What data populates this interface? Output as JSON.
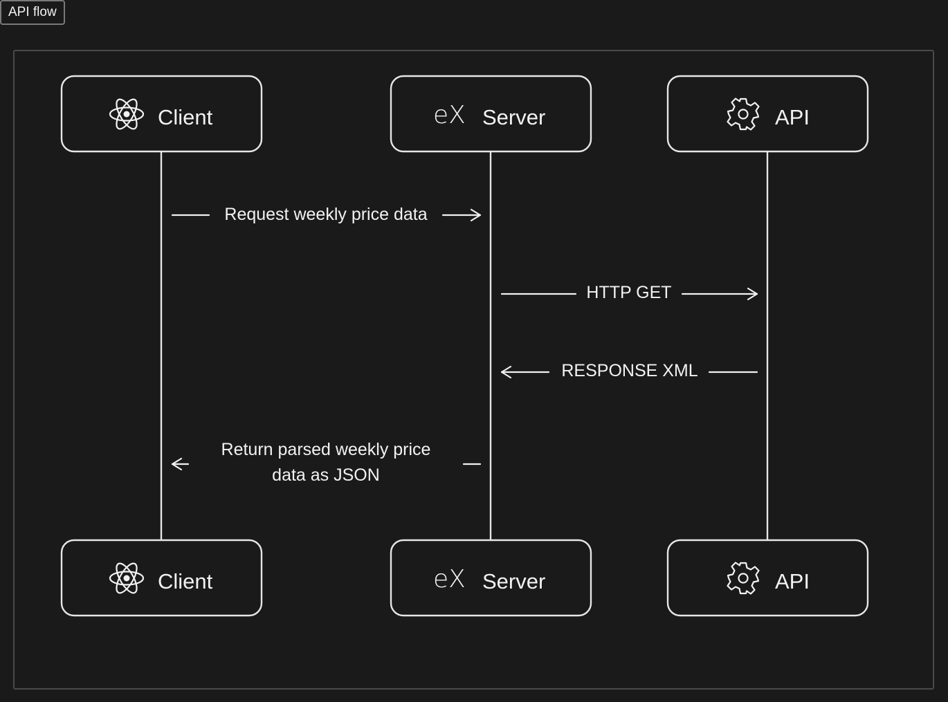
{
  "tab": {
    "label": "API flow"
  },
  "participants": [
    {
      "label": "Client",
      "icon": "react-atom-icon"
    },
    {
      "label": "Server",
      "icon": "express-ex-icon",
      "icon_text": "eX"
    },
    {
      "label": "API",
      "icon": "gear-icon"
    }
  ],
  "messages": [
    {
      "from": "Client",
      "to": "Server",
      "label": "Request weekly price data"
    },
    {
      "from": "Server",
      "to": "API",
      "label": "HTTP GET"
    },
    {
      "from": "API",
      "to": "Server",
      "label": "RESPONSE XML"
    },
    {
      "from": "Server",
      "to": "Client",
      "label_lines": [
        "Return parsed weekly price",
        "data as JSON"
      ]
    }
  ],
  "colors": {
    "background": "#1a1a1a",
    "stroke": "#e6e6e6",
    "frame_border": "#4a4a4a",
    "text": "#f2f2f2"
  }
}
